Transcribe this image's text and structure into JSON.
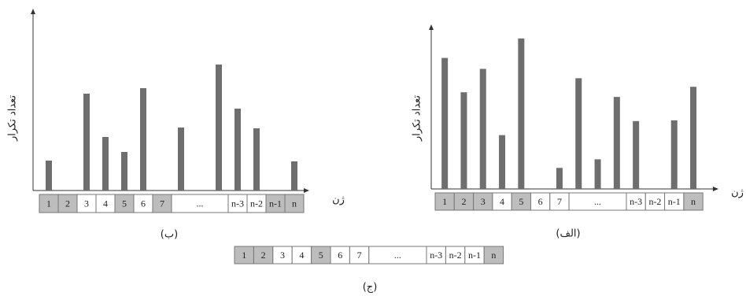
{
  "chart_data": [
    {
      "type": "bar",
      "caption": "(ب)",
      "ylabel": "تعداد تکرار",
      "xlabel": "ژن",
      "categories": [
        "1",
        "2",
        "3",
        "4",
        "5",
        "6",
        "7",
        "...",
        null,
        null,
        "n-3",
        "n-2",
        "n-1",
        "n"
      ],
      "values": [
        38,
        null,
        123,
        68,
        49,
        130,
        null,
        80,
        null,
        160,
        104,
        79,
        null,
        37
      ],
      "cell_colors": [
        "#bdbdbd",
        "#bdbdbd",
        "#ffffff",
        "#ffffff",
        "#bdbdbd",
        "#ffffff",
        "#bdbdbd",
        "#ffffff",
        null,
        null,
        "#ffffff",
        "#ffffff",
        "#bdbdbd",
        "#bdbdbd"
      ],
      "color": "#6e6e6e",
      "ylim": [
        0,
        230
      ]
    },
    {
      "type": "bar",
      "caption": "(الف)",
      "ylabel": "تعداد تکرار",
      "xlabel": "ژن",
      "categories": [
        "1",
        "2",
        "3",
        "4",
        "5",
        "6",
        "7",
        "...",
        null,
        null,
        "n-3",
        "n-2",
        "n-1",
        "n"
      ],
      "values": [
        168,
        124,
        154,
        69,
        193,
        null,
        27,
        142,
        38,
        118,
        87,
        null,
        88,
        131
      ],
      "cell_colors": [
        "#bdbdbd",
        "#bdbdbd",
        "#bdbdbd",
        "#ffffff",
        "#bdbdbd",
        "#ffffff",
        "#ffffff",
        "#ffffff",
        null,
        null,
        "#ffffff",
        "#ffffff",
        "#ffffff",
        "#bdbdbd"
      ],
      "color": "#6e6e6e",
      "ylim": [
        0,
        210
      ]
    }
  ],
  "chromosome": {
    "caption": "(ج)",
    "cells": [
      "1",
      "2",
      "3",
      "4",
      "5",
      "6",
      "7",
      "...",
      null,
      null,
      "n-3",
      "n-2",
      "n-1",
      "n"
    ],
    "cell_colors": [
      "#bdbdbd",
      "#bdbdbd",
      "#ffffff",
      "#ffffff",
      "#bdbdbd",
      "#ffffff",
      "#ffffff",
      "#ffffff",
      null,
      null,
      "#ffffff",
      "#ffffff",
      "#ffffff",
      "#bdbdbd"
    ]
  }
}
